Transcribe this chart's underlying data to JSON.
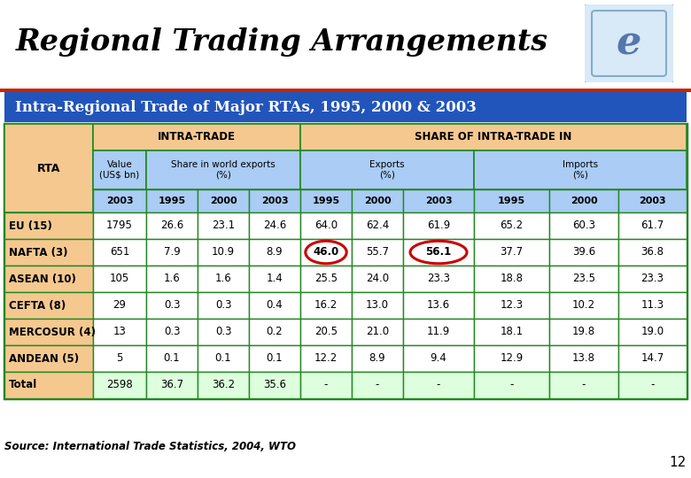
{
  "title": "Regional Trading Arrangements",
  "subtitle": "Intra-Regional Trade of Major RTAs, 1995, 2000 & 2003",
  "source": "Source: International Trade Statistics, 2004, WTO",
  "page_number": "12",
  "header1": "INTRA-TRADE",
  "header2": "SHARE OF INTRA-TRADE IN",
  "col_years": [
    "2003",
    "1995",
    "2000",
    "2003",
    "1995",
    "2000",
    "2003",
    "1995",
    "2000",
    "2003"
  ],
  "row_label_col": "RTA",
  "rows": [
    {
      "label": "EU (15)",
      "data": [
        "1795",
        "26.6",
        "23.1",
        "24.6",
        "64.0",
        "62.4",
        "61.9",
        "65.2",
        "60.3",
        "61.7"
      ]
    },
    {
      "label": "NAFTA (3)",
      "data": [
        "651",
        "7.9",
        "10.9",
        "8.9",
        "46.0",
        "55.7",
        "56.1",
        "37.7",
        "39.6",
        "36.8"
      ]
    },
    {
      "label": "ASEAN (10)",
      "data": [
        "105",
        "1.6",
        "1.6",
        "1.4",
        "25.5",
        "24.0",
        "23.3",
        "18.8",
        "23.5",
        "23.3"
      ]
    },
    {
      "label": "CEFTA (8)",
      "data": [
        "29",
        "0.3",
        "0.3",
        "0.4",
        "16.2",
        "13.0",
        "13.6",
        "12.3",
        "10.2",
        "11.3"
      ]
    },
    {
      "label": "MERCOSUR (4)",
      "data": [
        "13",
        "0.3",
        "0.3",
        "0.2",
        "20.5",
        "21.0",
        "11.9",
        "18.1",
        "19.8",
        "19.0"
      ]
    },
    {
      "label": "ANDEAN (5)",
      "data": [
        "5",
        "0.1",
        "0.1",
        "0.1",
        "12.2",
        "8.9",
        "9.4",
        "12.9",
        "13.8",
        "14.7"
      ]
    },
    {
      "label": "Total",
      "data": [
        "2598",
        "36.7",
        "36.2",
        "35.6",
        "-",
        "-",
        "-",
        "-",
        "-",
        "-"
      ]
    }
  ],
  "circle_cells": [
    [
      1,
      4
    ],
    [
      1,
      6
    ]
  ],
  "colors": {
    "title_text": "#000000",
    "subtitle_bg": "#2255bb",
    "subtitle_text": "#ffffff",
    "table_border": "#228822",
    "header_bg": "#f5c890",
    "col_header_bg": "#aaccf5",
    "rta_col_bg": "#f5c890",
    "data_bg": "#ffffff",
    "total_bg": "#ddffdd",
    "circle_color": "#cc0000",
    "slide_bg": "#ffffff",
    "red_line": "#cc2200",
    "logo_bg": "#d8eaf8",
    "logo_border": "#88aac8",
    "logo_text": "#5577aa"
  }
}
